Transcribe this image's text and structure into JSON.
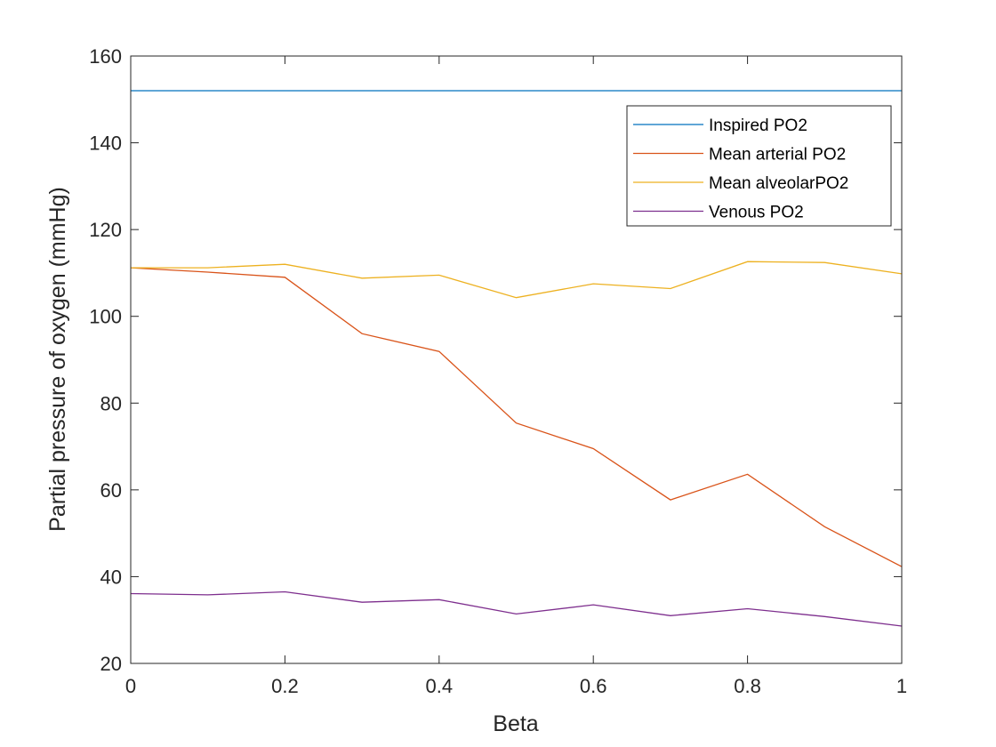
{
  "chart_data": {
    "type": "line",
    "title": "",
    "xlabel": "Beta",
    "ylabel": "Partial pressure of oxygen (mmHg)",
    "xlim": [
      0,
      1
    ],
    "ylim": [
      20,
      160
    ],
    "xticks": [
      0,
      0.2,
      0.4,
      0.6,
      0.8,
      1
    ],
    "xtick_labels": [
      "0",
      "0.2",
      "0.4",
      "0.6",
      "0.8",
      "1"
    ],
    "yticks": [
      20,
      40,
      60,
      80,
      100,
      120,
      140,
      160
    ],
    "ytick_labels": [
      "20",
      "40",
      "60",
      "80",
      "100",
      "120",
      "140",
      "160"
    ],
    "grid": false,
    "legend_position": "top-right",
    "x": [
      0,
      0.1,
      0.2,
      0.3,
      0.4,
      0.5,
      0.6,
      0.7,
      0.8,
      0.9,
      1.0
    ],
    "series": [
      {
        "name": "Inspired PO2",
        "color": "#0072BD",
        "values": [
          152,
          152,
          152,
          152,
          152,
          152,
          152,
          152,
          152,
          152,
          152
        ]
      },
      {
        "name": "Mean arterial PO2",
        "color": "#D95319",
        "values": [
          111.2,
          110.2,
          109.0,
          96.0,
          91.9,
          75.4,
          69.5,
          57.7,
          63.6,
          51.5,
          42.3
        ]
      },
      {
        "name": "Mean alveolarPO2",
        "color": "#EDB120",
        "values": [
          111.2,
          111.2,
          112.0,
          108.8,
          109.5,
          104.3,
          107.5,
          106.4,
          112.6,
          112.4,
          109.8
        ]
      },
      {
        "name": "Venous PO2",
        "color": "#7E2F8E",
        "values": [
          36.1,
          35.8,
          36.5,
          34.1,
          34.7,
          31.4,
          33.5,
          31.0,
          32.6,
          30.8,
          28.6
        ]
      }
    ]
  }
}
